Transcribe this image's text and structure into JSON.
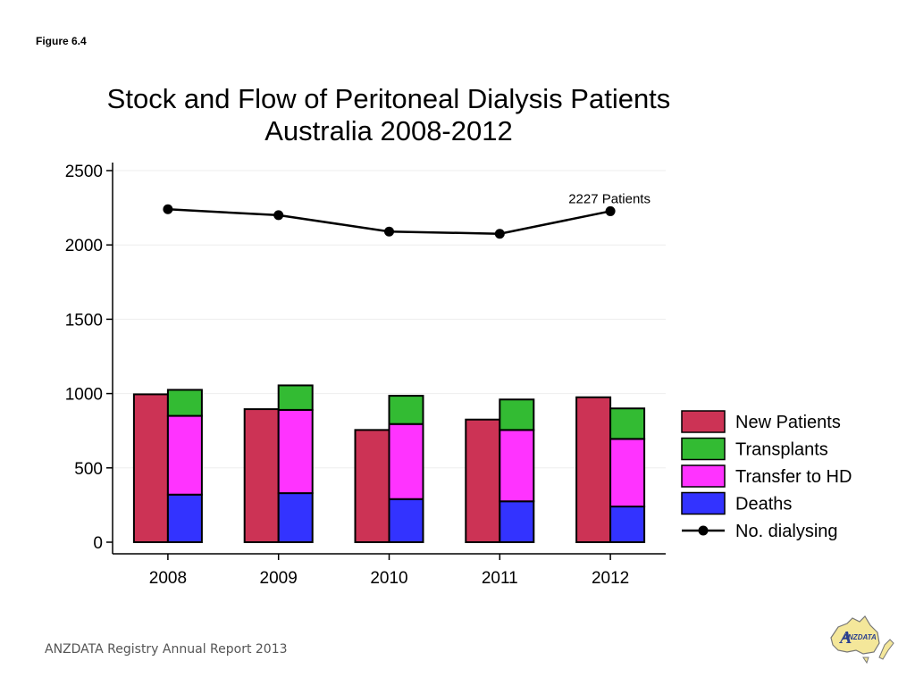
{
  "figure_label": "Figure 6.4",
  "footer": "ANZDATA Registry Annual Report 2013",
  "logo": {
    "text": "ANZDATA",
    "icon": "anzdata-australia-map-logo"
  },
  "chart_data": {
    "type": "bar",
    "title_line1": "Stock and Flow of Peritoneal Dialysis Patients",
    "title_line2": "Australia 2008-2012",
    "categories": [
      "2008",
      "2009",
      "2010",
      "2011",
      "2012"
    ],
    "ylim": [
      0,
      2500
    ],
    "yticks": [
      0,
      500,
      1000,
      1500,
      2000,
      2500
    ],
    "grid": true,
    "legend_position": "right",
    "bar_series": [
      {
        "name": "New Patients",
        "color": "#cc3355",
        "values": [
          995,
          895,
          755,
          825,
          975
        ]
      }
    ],
    "stacked_series": [
      {
        "name": "Deaths",
        "color": "#3333ff",
        "values": [
          320,
          330,
          290,
          275,
          240
        ]
      },
      {
        "name": "Transfer to HD",
        "color": "#ff33ff",
        "values": [
          530,
          560,
          505,
          480,
          455
        ]
      },
      {
        "name": "Transplants",
        "color": "#33bb33",
        "values": [
          175,
          165,
          190,
          205,
          205
        ]
      }
    ],
    "legend": [
      "New Patients",
      "Transplants",
      "Transfer to HD",
      "Deaths",
      "No. dialysing"
    ],
    "legend_colors": [
      "#cc3355",
      "#33bb33",
      "#ff33ff",
      "#3333ff",
      "#000000"
    ],
    "line_series": {
      "name": "No. dialysing",
      "color": "#000000",
      "values": [
        2240,
        2200,
        2090,
        2075,
        2227
      ]
    },
    "annotation": {
      "text": "2227 Patients",
      "category": "2012",
      "value": 2227
    }
  }
}
